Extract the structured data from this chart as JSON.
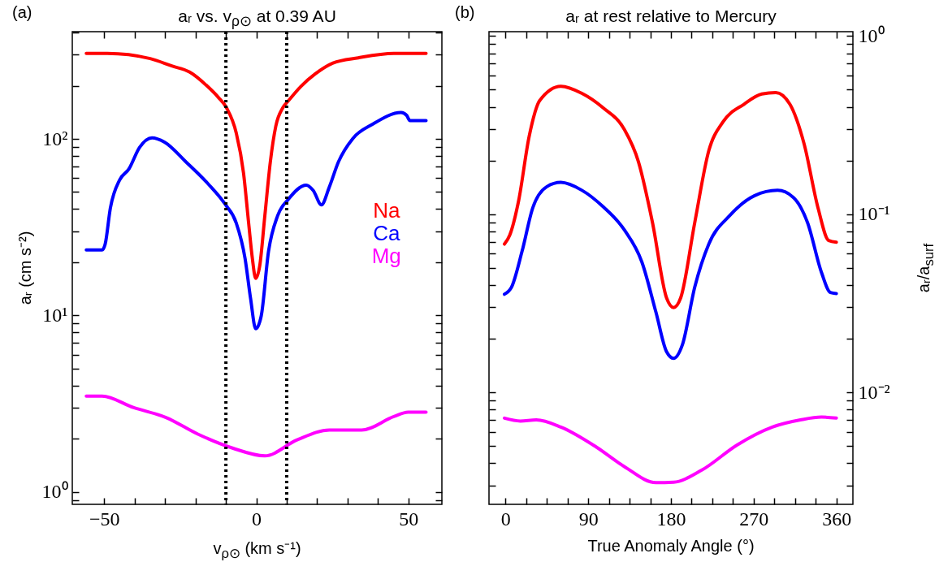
{
  "chart_data": [
    {
      "type": "line",
      "title": "aᵣ vs. v$_{ρ⊙}$ at 0.39 AU",
      "xlabel": "v$_{ρ⊙}$ (km s⁻¹)",
      "ylabel": "aᵣ (cm s⁻²)",
      "annotations": [
        "(a)"
      ],
      "log": "y",
      "legend": "right",
      "xlim": [
        -60.5,
        61
      ],
      "xticks": [
        {
          "value": -50,
          "label": "−50"
        },
        0,
        50,
        {
          "value": -40,
          "label": null
        },
        {
          "value": -30,
          "label": null
        },
        {
          "value": -20,
          "label": null
        },
        {
          "value": -10,
          "label": null
        },
        {
          "value": 10,
          "label": null
        },
        {
          "value": 20,
          "label": null
        },
        {
          "value": 30,
          "label": null
        },
        {
          "value": 40,
          "label": null
        }
      ],
      "ylim": [
        0.85,
        405
      ],
      "yticks": [
        {
          "value": 1,
          "label": "10⁰"
        },
        {
          "value": 10,
          "label": "10¹"
        },
        {
          "value": 100,
          "label": "10²"
        },
        {
          "value": 0.9,
          "label": null
        },
        {
          "value": 2,
          "label": null
        },
        {
          "value": 3,
          "label": null
        },
        {
          "value": 4,
          "label": null
        },
        {
          "value": 5,
          "label": null
        },
        {
          "value": 6,
          "label": null
        },
        {
          "value": 7,
          "label": null
        },
        {
          "value": 8,
          "label": null
        },
        {
          "value": 9,
          "label": null
        },
        {
          "value": 20,
          "label": null
        },
        {
          "value": 30,
          "label": null
        },
        {
          "value": 40,
          "label": null
        },
        {
          "value": 50,
          "label": null
        },
        {
          "value": 60,
          "label": null
        },
        {
          "value": 70,
          "label": null
        },
        {
          "value": 80,
          "label": null
        },
        {
          "value": 90,
          "label": null
        },
        {
          "value": 200,
          "label": null
        },
        {
          "value": 300,
          "label": null
        },
        {
          "value": 400,
          "label": null
        }
      ],
      "ref_lines": [
        {
          "axis": "x",
          "value": -10,
          "color": "#000000",
          "line_style": "dotted"
        },
        {
          "axis": "x",
          "value": 10,
          "color": "#000000",
          "line_style": "dotted"
        }
      ],
      "series": [
        {
          "name": "Na",
          "color": "#ff0000",
          "x": [
            -55.9,
            -49,
            -34.9,
            -27.8,
            -21.9,
            -16,
            -12.5,
            -9.8,
            -6.6,
            -4.2,
            -2.5,
            -1.3,
            -0.2,
            1.1,
            2.8,
            4.6,
            6.4,
            8.7,
            10.5,
            14.6,
            19.3,
            25.2,
            33.5,
            45.2,
            55.8
          ],
          "values": [
            305,
            305,
            285,
            259,
            239,
            198,
            172,
            150,
            108,
            64,
            33,
            21,
            16.2,
            19,
            36.7,
            74,
            118,
            150,
            164,
            198,
            233,
            269,
            288,
            305,
            305
          ]
        },
        {
          "name": "Ca",
          "color": "#0000ff",
          "x": [
            -55.9,
            -50.7,
            -49.7,
            -48,
            -44.9,
            -41.9,
            -38.4,
            -34.3,
            -30.2,
            -23.1,
            -16,
            -10.1,
            -6.6,
            -3.7,
            -1.9,
            -0.2,
            1.6,
            4,
            7,
            10.5,
            16.4,
            18.7,
            21.4,
            24,
            27,
            31.7,
            38.2,
            47.6,
            49.4,
            50.5,
            55.8
          ],
          "values": [
            23.5,
            23.5,
            25.3,
            40.4,
            58.7,
            67.5,
            89.4,
            101.4,
            95.9,
            74,
            56,
            42.3,
            33.4,
            21,
            12.5,
            8.4,
            9.9,
            23,
            36.7,
            45.4,
            54.7,
            51,
            42.3,
            53.4,
            74.1,
            100.4,
            121,
            141,
            136,
            127,
            127
          ]
        },
        {
          "name": "Mg",
          "color": "#ff00ff",
          "x": [
            -55.9,
            -50.7,
            -40.3,
            -29.7,
            -19.1,
            -7.8,
            2.8,
            13.4,
            24,
            34.6,
            45.2,
            49.9,
            55.8
          ],
          "values": [
            3.49,
            3.49,
            3.0,
            2.64,
            2.12,
            1.77,
            1.6,
            1.97,
            2.24,
            2.24,
            2.67,
            2.83,
            2.83
          ]
        }
      ]
    },
    {
      "type": "line",
      "title": "aᵣ at rest relative to Mercury",
      "xlabel": "True Anomaly Angle (°)",
      "y2label": "aᵣ/a$_{surf}$",
      "annotations": [
        "(b)"
      ],
      "log": "y2",
      "xlim": [
        -18,
        378
      ],
      "xticks": [
        0,
        90,
        180,
        270,
        360,
        {
          "value": 22.5,
          "label": null
        },
        {
          "value": 45,
          "label": null
        },
        {
          "value": 67.5,
          "label": null
        },
        {
          "value": 112.5,
          "label": null
        },
        {
          "value": 135,
          "label": null
        },
        {
          "value": 157.5,
          "label": null
        },
        {
          "value": 202.5,
          "label": null
        },
        {
          "value": 225,
          "label": null
        },
        {
          "value": 247.5,
          "label": null
        },
        {
          "value": 292.5,
          "label": null
        },
        {
          "value": 315,
          "label": null
        },
        {
          "value": 337.5,
          "label": null
        }
      ],
      "y2lim": [
        0.00235,
        1.057
      ],
      "y2ticks": [
        {
          "value": 0.01,
          "label": "10⁻²"
        },
        {
          "value": 0.1,
          "label": "10⁻¹"
        },
        {
          "value": 1,
          "label": "10⁰"
        },
        {
          "value": 0.003,
          "label": null
        },
        {
          "value": 0.004,
          "label": null
        },
        {
          "value": 0.005,
          "label": null
        },
        {
          "value": 0.006,
          "label": null
        },
        {
          "value": 0.007,
          "label": null
        },
        {
          "value": 0.008,
          "label": null
        },
        {
          "value": 0.009,
          "label": null
        },
        {
          "value": 0.02,
          "label": null
        },
        {
          "value": 0.03,
          "label": null
        },
        {
          "value": 0.04,
          "label": null
        },
        {
          "value": 0.05,
          "label": null
        },
        {
          "value": 0.06,
          "label": null
        },
        {
          "value": 0.07,
          "label": null
        },
        {
          "value": 0.08,
          "label": null
        },
        {
          "value": 0.09,
          "label": null
        },
        {
          "value": 0.2,
          "label": null
        },
        {
          "value": 0.3,
          "label": null
        },
        {
          "value": 0.4,
          "label": null
        },
        {
          "value": 0.5,
          "label": null
        },
        {
          "value": 0.6,
          "label": null
        },
        {
          "value": 0.7,
          "label": null
        },
        {
          "value": 0.8,
          "label": null
        },
        {
          "value": 0.9,
          "label": null
        }
      ],
      "series": [
        {
          "color": "#ff0000",
          "axis": "y2",
          "x": [
            -1.2,
            4.6,
            14.2,
            25.7,
            37.2,
            60.2,
            83.2,
            106.2,
            129.2,
            144.6,
            159.9,
            175.2,
            182.9,
            190.6,
            205.9,
            221.2,
            236.6,
            259.6,
            278.8,
            294.1,
            309.4,
            324.8,
            340.1,
            351.6,
            360
          ],
          "values": [
            0.0679,
            0.0762,
            0.1185,
            0.273,
            0.434,
            0.522,
            0.476,
            0.395,
            0.299,
            0.197,
            0.0897,
            0.0339,
            0.0299,
            0.0339,
            0.0897,
            0.227,
            0.329,
            0.414,
            0.472,
            0.481,
            0.414,
            0.249,
            0.108,
            0.0711,
            0.0695
          ]
        },
        {
          "color": "#0000ff",
          "axis": "y2",
          "x": [
            -1.2,
            6.5,
            18,
            29.5,
            44.9,
            60.2,
            83.2,
            106.2,
            129.2,
            148.4,
            163.7,
            175.2,
            182.9,
            192.5,
            205.9,
            221.2,
            244.2,
            271.1,
            296,
            313.3,
            328.6,
            343.9,
            353.5,
            360
          ],
          "values": [
            0.0355,
            0.0389,
            0.0619,
            0.108,
            0.1426,
            0.1507,
            0.136,
            0.11,
            0.0817,
            0.0538,
            0.0281,
            0.0169,
            0.0155,
            0.0185,
            0.0389,
            0.0679,
            0.0984,
            0.127,
            0.136,
            0.124,
            0.0897,
            0.0469,
            0.0363,
            0.0358
          ]
        },
        {
          "color": "#ff00ff",
          "axis": "y2",
          "x": [
            -1.2,
            16.1,
            33.4,
            60.2,
            98.5,
            129.2,
            163.7,
            182.9,
            213.6,
            251.9,
            290.3,
            320.9,
            343.9,
            360
          ],
          "values": [
            0.00716,
            0.0069,
            0.007,
            0.00638,
            0.00494,
            0.00383,
            0.00311,
            0.00313,
            0.00366,
            0.00506,
            0.00638,
            0.007,
            0.00726,
            0.00716
          ]
        }
      ]
    }
  ]
}
